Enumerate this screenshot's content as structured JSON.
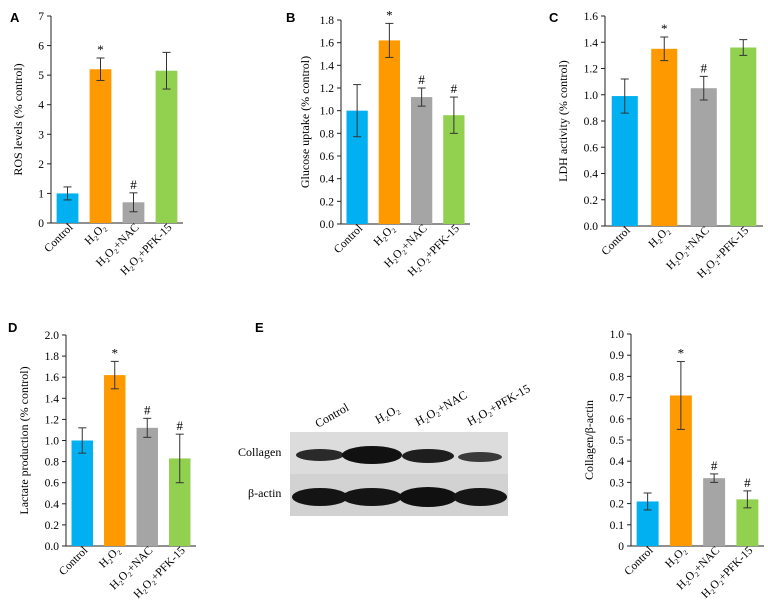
{
  "chart_data": [
    {
      "panel": "A",
      "type": "bar",
      "ylabel": "ROS levels (% control)",
      "ylim": [
        0,
        7
      ],
      "yticks": [
        "0",
        "1",
        "2",
        "3",
        "4",
        "5",
        "6",
        "7"
      ],
      "categories": [
        "Control",
        "H₂O₂",
        "H₂O₂+NAC",
        "H₂O₂+PFK-15"
      ],
      "values": [
        1.0,
        5.2,
        0.7,
        5.15
      ],
      "errors": [
        0.22,
        0.38,
        0.32,
        0.62
      ],
      "marks": [
        "",
        "*",
        "#",
        ""
      ],
      "colors": [
        "#00b0f0",
        "#ff9900",
        "#a5a5a5",
        "#92d050"
      ]
    },
    {
      "panel": "B",
      "type": "bar",
      "ylabel": "Glucose uptake (% control)",
      "ylim": [
        0,
        1.8
      ],
      "yticks": [
        "0.0",
        "0.2",
        "0.4",
        "0.6",
        "0.8",
        "1.0",
        "1.2",
        "1.4",
        "1.6",
        "1.8"
      ],
      "categories": [
        "Control",
        "H₂O₂",
        "H₂O₂+NAC",
        "H₂O₂+PFK-15"
      ],
      "values": [
        1.0,
        1.62,
        1.12,
        0.96
      ],
      "errors": [
        0.23,
        0.15,
        0.08,
        0.16
      ],
      "marks": [
        "",
        "*",
        "#",
        "#"
      ],
      "colors": [
        "#00b0f0",
        "#ff9900",
        "#a5a5a5",
        "#92d050"
      ]
    },
    {
      "panel": "C",
      "type": "bar",
      "ylabel": "LDH activity (% control)",
      "ylim": [
        0,
        1.6
      ],
      "yticks": [
        "0.0",
        "0.2",
        "0.4",
        "0.6",
        "0.8",
        "1.0",
        "1.2",
        "1.4",
        "1.6"
      ],
      "categories": [
        "Control",
        "H₂O₂",
        "H₂O₂+NAC",
        "H₂O₂+PFK-15"
      ],
      "values": [
        0.99,
        1.35,
        1.05,
        1.36
      ],
      "errors": [
        0.13,
        0.09,
        0.09,
        0.06
      ],
      "marks": [
        "",
        "*",
        "#",
        ""
      ],
      "colors": [
        "#00b0f0",
        "#ff9900",
        "#a5a5a5",
        "#92d050"
      ]
    },
    {
      "panel": "D",
      "type": "bar",
      "ylabel": "Lactate production (% control)",
      "ylim": [
        0,
        2.0
      ],
      "yticks": [
        "0.0",
        "0.2",
        "0.4",
        "0.6",
        "0.8",
        "1.0",
        "1.2",
        "1.4",
        "1.6",
        "1.8",
        "2.0"
      ],
      "categories": [
        "Control",
        "H₂O₂",
        "H₂O₂+NAC",
        "H₂O₂+PFK-15"
      ],
      "values": [
        1.0,
        1.62,
        1.12,
        0.83
      ],
      "errors": [
        0.12,
        0.13,
        0.09,
        0.23
      ],
      "marks": [
        "",
        "*",
        "#",
        "#"
      ],
      "colors": [
        "#00b0f0",
        "#ff9900",
        "#a5a5a5",
        "#92d050"
      ]
    },
    {
      "panel": "",
      "type": "bar",
      "ylabel": "Collagen/β-actin",
      "ylim": [
        0,
        1.0
      ],
      "yticks": [
        "0",
        "0.1",
        "0.2",
        "0.3",
        "0.4",
        "0.5",
        "0.6",
        "0.7",
        "0.8",
        "0.9",
        "1.0"
      ],
      "categories": [
        "Control",
        "H₂O₂",
        "H₂O₂+NAC",
        "H₂O₂+PFK-15"
      ],
      "values": [
        0.21,
        0.71,
        0.32,
        0.22
      ],
      "errors": [
        0.04,
        0.16,
        0.02,
        0.04
      ],
      "marks": [
        "",
        "*",
        "#",
        "#"
      ],
      "colors": [
        "#00b0f0",
        "#ff9900",
        "#a5a5a5",
        "#92d050"
      ]
    }
  ],
  "blot": {
    "panel": "E",
    "lanes": [
      "Control",
      "H₂O₂",
      "H₂O₂+NAC",
      "H₂O₂+PFK-15"
    ],
    "rows": [
      "Collagen",
      "β-actin"
    ]
  }
}
